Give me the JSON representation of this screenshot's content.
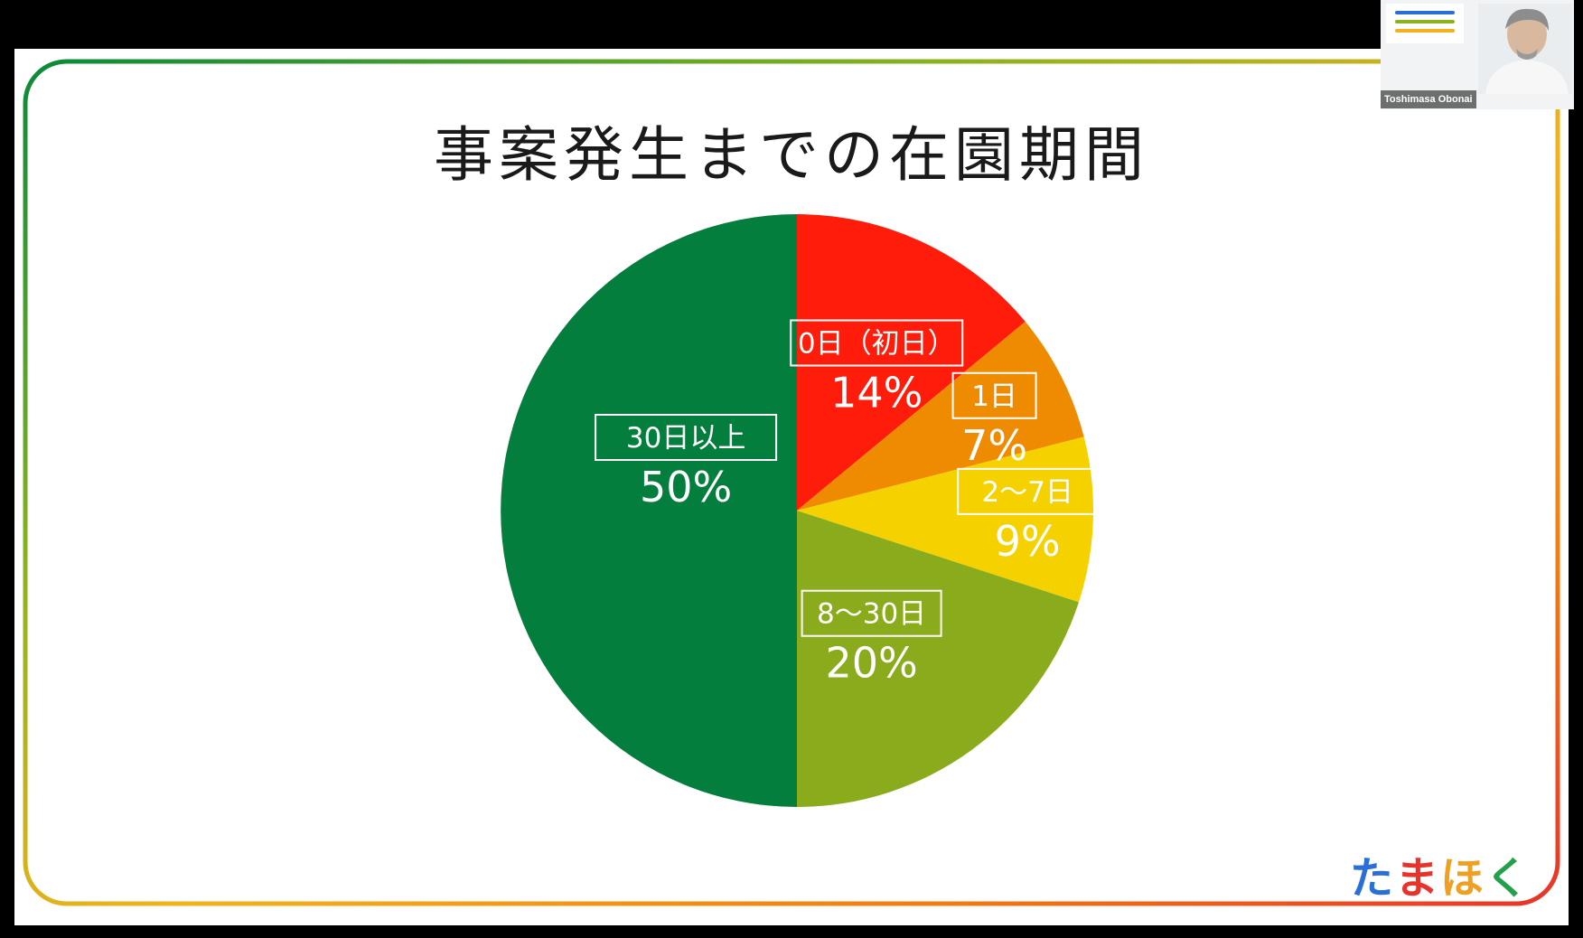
{
  "slide": {
    "title": "事案発生までの在園期間",
    "brand_logo_chars": [
      "た",
      "ま",
      "ほ",
      "く"
    ],
    "brand_logo_colors": [
      "#2a6fd8",
      "#e8332a",
      "#f0a020",
      "#23a04a"
    ]
  },
  "video_call": {
    "speaker_name": "Toshimasa Obonai"
  },
  "colors": {
    "frame_gradient": [
      "#0a8a3a",
      "#8ab31e",
      "#f3b21c",
      "#f07c12",
      "#e8332a"
    ]
  },
  "chart_data": {
    "type": "pie",
    "title": "事案発生までの在園期間",
    "start": "12 o'clock",
    "direction": "clockwise",
    "slices": [
      {
        "label": "0日（初日）",
        "percent_label": "14%",
        "value": 14,
        "color": "#ff1c0a"
      },
      {
        "label": "1日",
        "percent_label": "7%",
        "value": 7,
        "color": "#ee8b00"
      },
      {
        "label": "2〜7日",
        "percent_label": "9%",
        "value": 9,
        "color": "#f5d100"
      },
      {
        "label": "8〜30日",
        "percent_label": "20%",
        "value": 20,
        "color": "#8aab1b"
      },
      {
        "label": "30日以上",
        "percent_label": "50%",
        "value": 50,
        "color": "#037e3d"
      }
    ]
  }
}
